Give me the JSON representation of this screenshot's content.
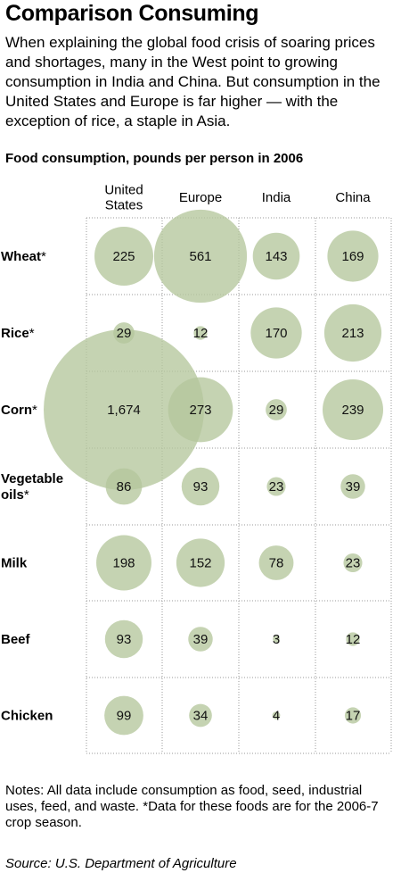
{
  "title": "Comparison Consuming",
  "intro": "When explaining the global food crisis of soaring prices and shortages, many in the West point to growing consumption in India and China. But consumption in the United States and Europe is far higher — with the exception of rice, a staple in Asia.",
  "subtitle": "Food consumption, pounds per person in 2006",
  "notes": "Notes: All data include consumption as food, seed, industrial uses, feed, and waste. *Data for these foods are for the 2006-7 crop season.",
  "source": "Source: U.S. Department of Agriculture",
  "colors": {
    "bubble": "#b5c69c",
    "grid": "#999999"
  },
  "chart_data": {
    "type": "bubble-grid",
    "columns": [
      {
        "lines": [
          "United",
          "States"
        ]
      },
      {
        "lines": [
          "Europe"
        ]
      },
      {
        "lines": [
          "India"
        ]
      },
      {
        "lines": [
          "China"
        ]
      }
    ],
    "rows": [
      {
        "lines": [
          "Wheat"
        ],
        "star": true,
        "values": [
          225,
          561,
          143,
          169
        ],
        "labels": [
          "225",
          "561",
          "143",
          "169"
        ]
      },
      {
        "lines": [
          "Rice"
        ],
        "star": true,
        "values": [
          29,
          12,
          170,
          213
        ],
        "labels": [
          "29",
          "12",
          "170",
          "213"
        ]
      },
      {
        "lines": [
          "Corn"
        ],
        "star": true,
        "values": [
          1674,
          273,
          29,
          239
        ],
        "labels": [
          "1,674",
          "273",
          "29",
          "239"
        ]
      },
      {
        "lines": [
          "Vegetable",
          "oils"
        ],
        "star": true,
        "values": [
          86,
          93,
          23,
          39
        ],
        "labels": [
          "86",
          "93",
          "23",
          "39"
        ]
      },
      {
        "lines": [
          "Milk"
        ],
        "star": false,
        "values": [
          198,
          152,
          78,
          23
        ],
        "labels": [
          "198",
          "152",
          "78",
          "23"
        ]
      },
      {
        "lines": [
          "Beef"
        ],
        "star": false,
        "values": [
          93,
          39,
          3,
          12
        ],
        "labels": [
          "93",
          "39",
          "3",
          "12"
        ]
      },
      {
        "lines": [
          "Chicken"
        ],
        "star": false,
        "values": [
          99,
          34,
          4,
          17
        ],
        "labels": [
          "99",
          "34",
          "4",
          "17"
        ]
      }
    ],
    "star_symbol": "*",
    "grid": true
  }
}
